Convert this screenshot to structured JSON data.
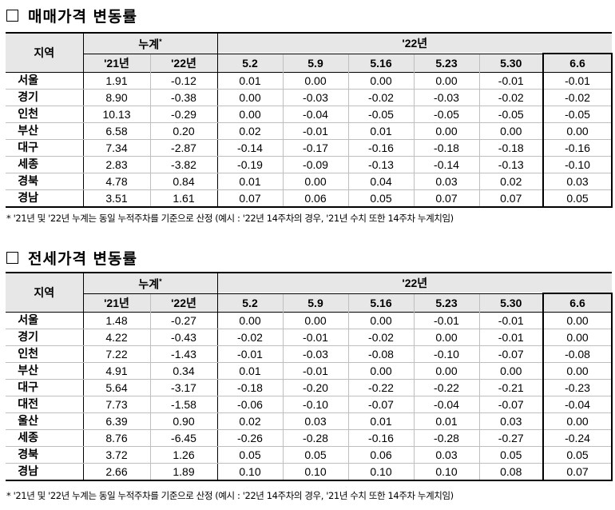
{
  "sale": {
    "title": "매매가격 변동률",
    "header": {
      "region": "지역",
      "ytd": "누계",
      "ytd_mark": "*",
      "year": "'22년",
      "ytd_cols": [
        "'21년",
        "'22년"
      ],
      "week_cols": [
        "5.2",
        "5.9",
        "5.16",
        "5.23",
        "5.30",
        "6.6"
      ]
    },
    "rows": [
      {
        "region": "서울",
        "vals": [
          "1.91",
          "-0.12",
          "0.01",
          "0.00",
          "0.00",
          "0.00",
          "-0.01",
          "-0.01"
        ]
      },
      {
        "region": "경기",
        "vals": [
          "8.90",
          "-0.38",
          "0.00",
          "-0.03",
          "-0.02",
          "-0.03",
          "-0.02",
          "-0.02"
        ]
      },
      {
        "region": "인천",
        "vals": [
          "10.13",
          "-0.29",
          "0.00",
          "-0.04",
          "-0.05",
          "-0.05",
          "-0.05",
          "-0.05"
        ]
      },
      {
        "region": "부산",
        "vals": [
          "6.58",
          "0.20",
          "0.02",
          "-0.01",
          "0.01",
          "0.00",
          "0.00",
          "0.00"
        ]
      },
      {
        "region": "대구",
        "vals": [
          "7.34",
          "-2.87",
          "-0.14",
          "-0.17",
          "-0.16",
          "-0.18",
          "-0.18",
          "-0.16"
        ]
      },
      {
        "region": "세종",
        "vals": [
          "2.83",
          "-3.82",
          "-0.19",
          "-0.09",
          "-0.13",
          "-0.14",
          "-0.13",
          "-0.10"
        ]
      },
      {
        "region": "경북",
        "vals": [
          "4.78",
          "0.84",
          "0.01",
          "0.00",
          "0.04",
          "0.03",
          "0.02",
          "0.03"
        ]
      },
      {
        "region": "경남",
        "vals": [
          "3.51",
          "1.61",
          "0.07",
          "0.06",
          "0.05",
          "0.07",
          "0.07",
          "0.05"
        ]
      }
    ],
    "note": "* '21년 및 '22년 누계는 동일 누적주차를 기준으로 산정 (예시 : '22년 14주차의 경우, '21년 수치 또한 14주차 누계치임)"
  },
  "jeonse": {
    "title": "전세가격 변동률",
    "header": {
      "region": "지역",
      "ytd": "누계",
      "ytd_mark": "*",
      "year": "'22년",
      "ytd_cols": [
        "'21년",
        "'22년"
      ],
      "week_cols": [
        "5.2",
        "5.9",
        "5.16",
        "5.23",
        "5.30",
        "6.6"
      ]
    },
    "rows": [
      {
        "region": "서울",
        "vals": [
          "1.48",
          "-0.27",
          "0.00",
          "0.00",
          "0.00",
          "-0.01",
          "-0.01",
          "0.00"
        ]
      },
      {
        "region": "경기",
        "vals": [
          "4.22",
          "-0.43",
          "-0.02",
          "-0.01",
          "-0.02",
          "0.00",
          "-0.01",
          "0.00"
        ]
      },
      {
        "region": "인천",
        "vals": [
          "7.22",
          "-1.43",
          "-0.01",
          "-0.03",
          "-0.08",
          "-0.10",
          "-0.07",
          "-0.08"
        ]
      },
      {
        "region": "부산",
        "vals": [
          "4.91",
          "0.34",
          "0.01",
          "-0.01",
          "0.00",
          "0.00",
          "0.00",
          "0.00"
        ]
      },
      {
        "region": "대구",
        "vals": [
          "5.64",
          "-3.17",
          "-0.18",
          "-0.20",
          "-0.22",
          "-0.22",
          "-0.21",
          "-0.23"
        ]
      },
      {
        "region": "대전",
        "vals": [
          "7.73",
          "-1.58",
          "-0.06",
          "-0.10",
          "-0.07",
          "-0.04",
          "-0.07",
          "-0.04"
        ]
      },
      {
        "region": "울산",
        "vals": [
          "6.39",
          "0.90",
          "0.02",
          "0.03",
          "0.01",
          "0.01",
          "0.03",
          "0.00"
        ]
      },
      {
        "region": "세종",
        "vals": [
          "8.76",
          "-6.45",
          "-0.26",
          "-0.28",
          "-0.16",
          "-0.28",
          "-0.27",
          "-0.24"
        ]
      },
      {
        "region": "경북",
        "vals": [
          "3.72",
          "1.26",
          "0.05",
          "0.05",
          "0.06",
          "0.03",
          "0.05",
          "0.05"
        ]
      },
      {
        "region": "경남",
        "vals": [
          "2.66",
          "1.89",
          "0.10",
          "0.10",
          "0.10",
          "0.10",
          "0.08",
          "0.07"
        ]
      }
    ],
    "note": "* '21년 및 '22년 누계는 동일 누적주차를 기준으로 산정 (예시 : '22년 14주차의 경우, '21년 수치 또한 14주차 누계치임)"
  }
}
